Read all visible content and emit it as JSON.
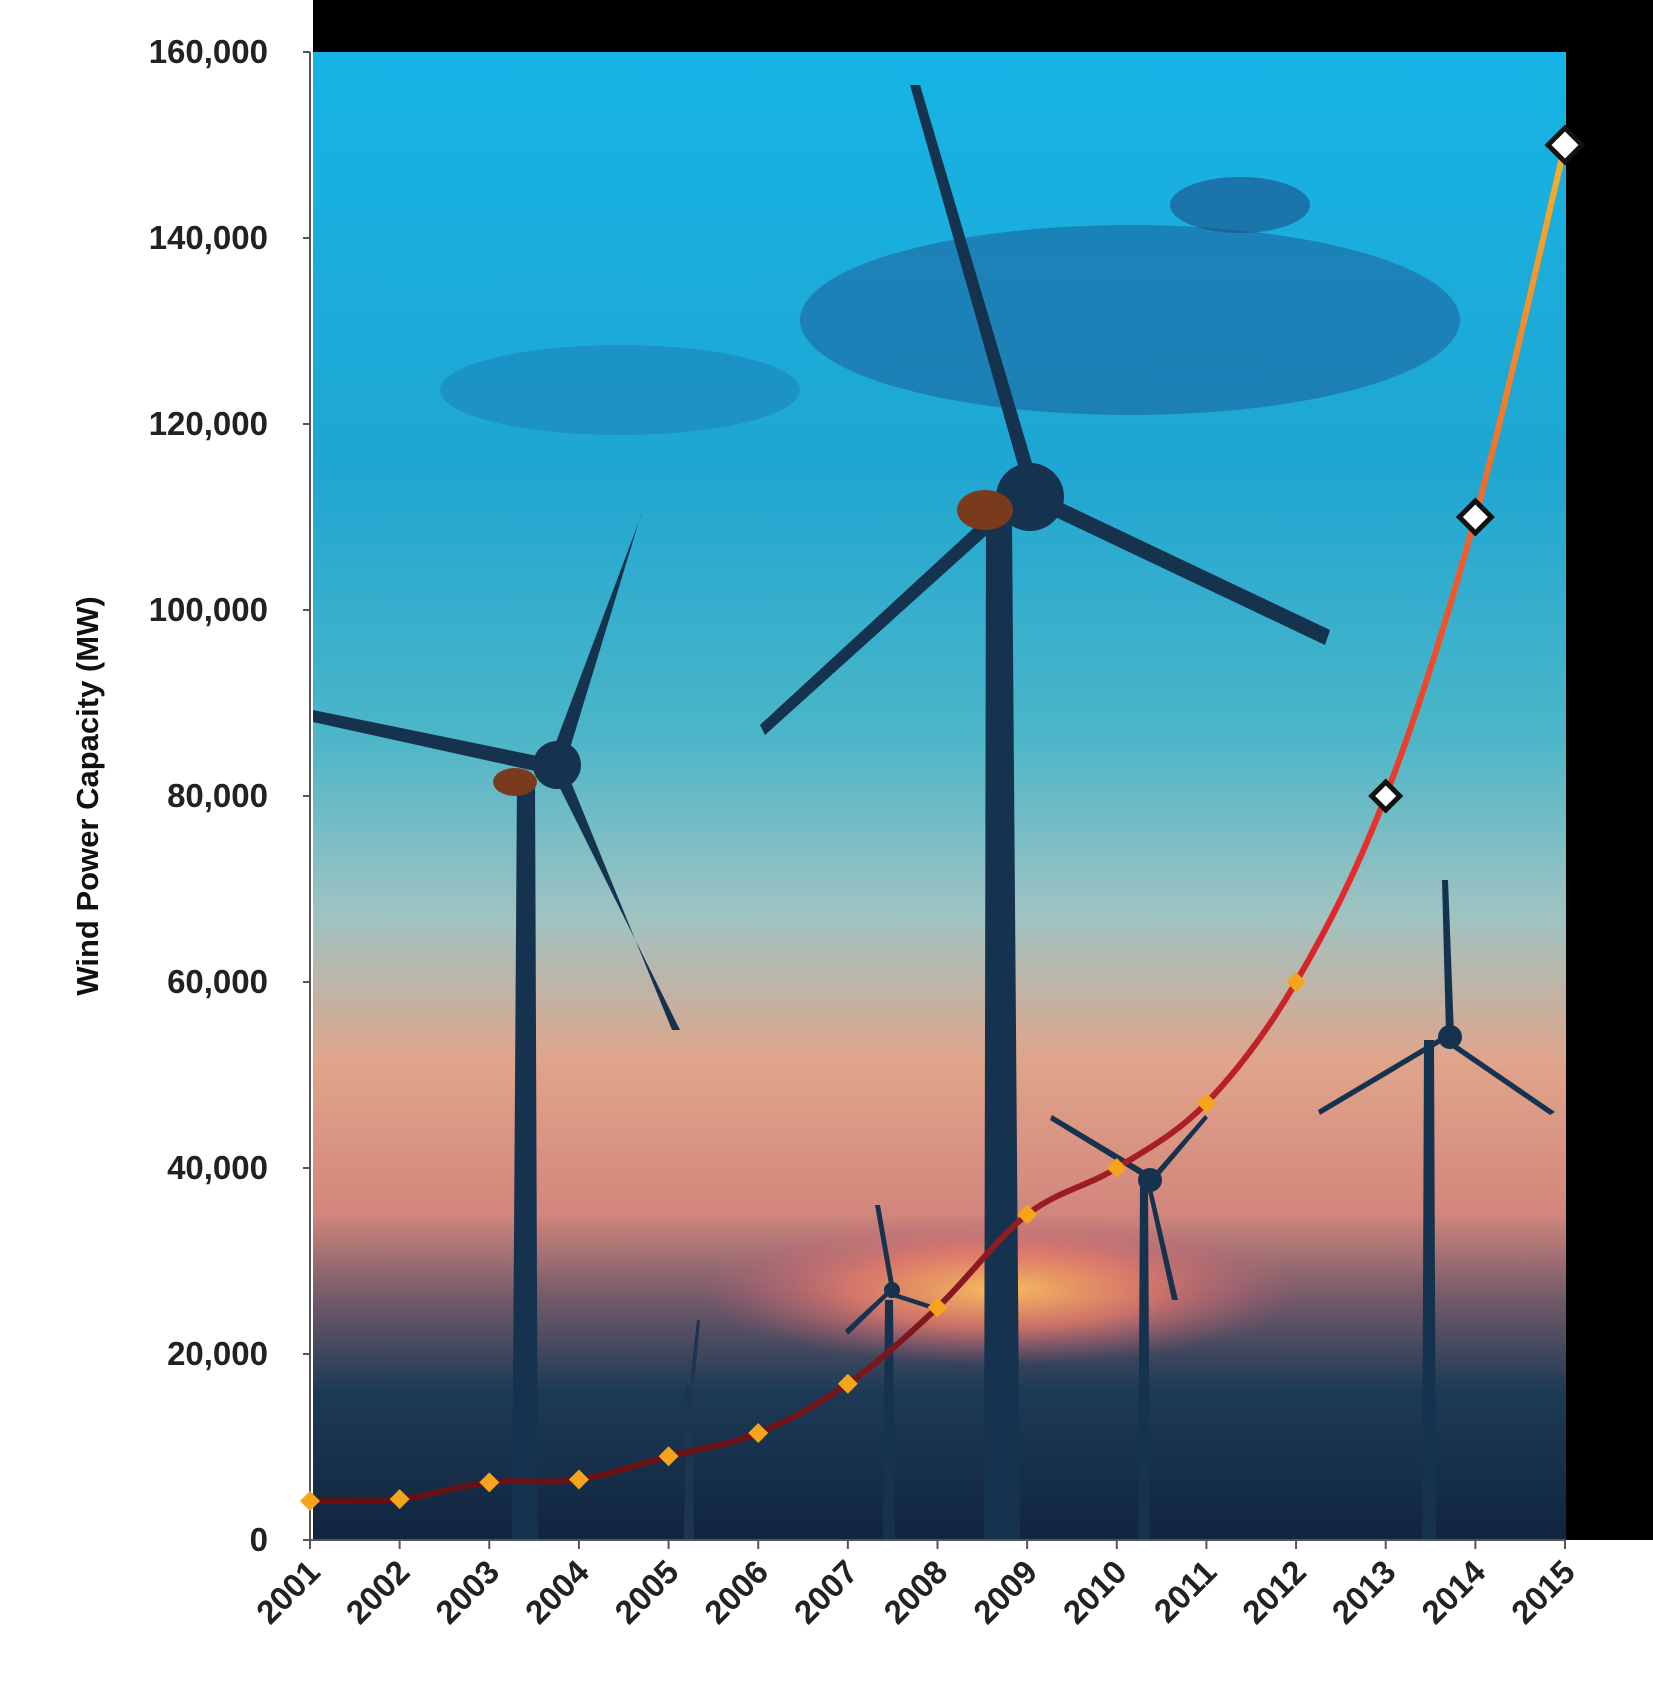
{
  "chart_data": {
    "type": "line",
    "ylabel": "Wind Power Capacity (MW)",
    "xlabel": "",
    "ylim": [
      0,
      160000
    ],
    "grid": false,
    "legend": "none",
    "y_ticks": [
      0,
      20000,
      40000,
      60000,
      80000,
      100000,
      120000,
      140000,
      160000
    ],
    "y_tick_labels": [
      "0",
      "20,000",
      "40,000",
      "60,000",
      "80,000",
      "100,000",
      "120,000",
      "140,000",
      "160,000"
    ],
    "categories": [
      "2001",
      "2002",
      "2003",
      "2004",
      "2005",
      "2006",
      "2007",
      "2008",
      "2009",
      "2010",
      "2011",
      "2012",
      "2013",
      "2014",
      "2015"
    ],
    "series": [
      {
        "values": [
          4200,
          4400,
          6200,
          6500,
          9000,
          11500,
          16800,
          25000,
          35000,
          40000,
          47000,
          60000,
          80000,
          110000,
          150000
        ],
        "projected_from_index": 12
      }
    ],
    "background": "photograph of wind turbines against a blue sky and sunset clouds",
    "colors": {
      "line_start": "#5e0f12",
      "line_mid": "#e3262c",
      "line_end": "#f6b42a",
      "marker_actual": "#f4a51c",
      "marker_projected_fill": "#ffffff",
      "marker_projected_stroke": "#111111",
      "frame_black": "#000000"
    }
  }
}
